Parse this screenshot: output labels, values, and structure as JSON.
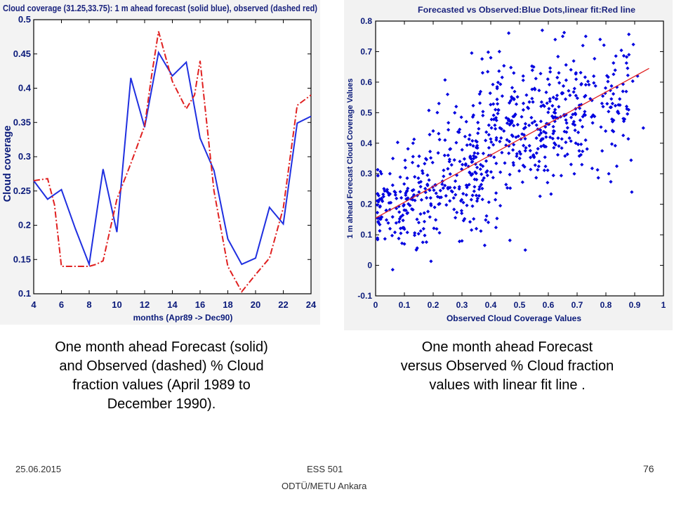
{
  "chart_data": [
    {
      "type": "line",
      "title": "Cloud coverage (31.25,33.75): 1 m ahead forecast (solid blue), observed (dashed red)",
      "xlabel": "months (Apr89 -> Dec90)",
      "ylabel": "Cloud coverage",
      "xlim": [
        4,
        24
      ],
      "ylim": [
        0.1,
        0.5
      ],
      "x_ticks": [
        "4",
        "6",
        "8",
        "10",
        "12",
        "14",
        "16",
        "18",
        "20",
        "22",
        "24"
      ],
      "y_ticks": [
        "0.1",
        "0.15",
        "0.2",
        "0.25",
        "0.3",
        "0.35",
        "0.4",
        "0.45",
        "0.5"
      ],
      "grid": false,
      "series": [
        {
          "name": "1 m ahead forecast",
          "color": "#1f2fe0",
          "style": "solid",
          "x": [
            4,
            5,
            6,
            7,
            8,
            9,
            10,
            11,
            12,
            13,
            14,
            15,
            16,
            17,
            18,
            19,
            20,
            21,
            22,
            23,
            24
          ],
          "y": [
            0.265,
            0.238,
            0.252,
            0.195,
            0.143,
            0.282,
            0.19,
            0.415,
            0.343,
            0.452,
            0.418,
            0.438,
            0.327,
            0.28,
            0.18,
            0.143,
            0.152,
            0.226,
            0.202,
            0.349,
            0.359
          ]
        },
        {
          "name": "observed",
          "color": "#e02020",
          "style": "dashed",
          "x": [
            4,
            5,
            5.5,
            6,
            7,
            8,
            8.5,
            9,
            10,
            11,
            12,
            12.5,
            13,
            14,
            15,
            15.6,
            16,
            17,
            18,
            19,
            20,
            21,
            22,
            23,
            24
          ],
          "y": [
            0.265,
            0.268,
            0.23,
            0.14,
            0.14,
            0.14,
            0.143,
            0.148,
            0.238,
            0.29,
            0.345,
            0.418,
            0.483,
            0.41,
            0.37,
            0.39,
            0.44,
            0.25,
            0.14,
            0.103,
            0.128,
            0.152,
            0.225,
            0.375,
            0.39
          ]
        }
      ]
    },
    {
      "type": "scatter",
      "title": "Forecasted vs Observed:Blue Dots,linear fit:Red line",
      "xlabel": "Observed Cloud Coverage Values",
      "ylabel": "1 m ahead Forecast Cloud Coverage Values",
      "xlim": [
        0,
        1
      ],
      "ylim": [
        -0.1,
        0.8
      ],
      "x_ticks": [
        "0",
        "0.1",
        "0.2",
        "0.3",
        "0.4",
        "0.5",
        "0.6",
        "0.7",
        "0.8",
        "0.9",
        "1"
      ],
      "y_ticks": [
        "-0.1",
        "0",
        "0.1",
        "0.2",
        "0.3",
        "0.4",
        "0.5",
        "0.6",
        "0.7",
        "0.8"
      ],
      "grid": false,
      "point_color": "#0000e0",
      "fit_color": "#e02020",
      "clusters": [
        {
          "cx": 0.07,
          "cy": 0.2,
          "sx": 0.05,
          "sy": 0.07,
          "n": 90
        },
        {
          "cx": 0.2,
          "cy": 0.26,
          "sx": 0.08,
          "sy": 0.1,
          "n": 130
        },
        {
          "cx": 0.35,
          "cy": 0.33,
          "sx": 0.07,
          "sy": 0.1,
          "n": 110
        },
        {
          "cx": 0.5,
          "cy": 0.46,
          "sx": 0.09,
          "sy": 0.1,
          "n": 220
        },
        {
          "cx": 0.7,
          "cy": 0.5,
          "sx": 0.08,
          "sy": 0.09,
          "n": 130
        },
        {
          "cx": 0.85,
          "cy": 0.56,
          "sx": 0.04,
          "sy": 0.09,
          "n": 40
        }
      ],
      "points": [
        [
          0.05,
          0.12
        ],
        [
          0.02,
          0.3
        ],
        [
          0.06,
          0.35
        ],
        [
          0.1,
          0.07
        ],
        [
          0.13,
          0.4
        ],
        [
          0.2,
          0.44
        ],
        [
          0.22,
          0.53
        ],
        [
          0.25,
          0.56
        ],
        [
          0.28,
          0.52
        ],
        [
          0.3,
          0.08
        ],
        [
          0.4,
          0.68
        ],
        [
          0.43,
          0.7
        ],
        [
          0.52,
          0.05
        ],
        [
          0.48,
          0.63
        ],
        [
          0.65,
          0.75
        ],
        [
          0.72,
          0.72
        ],
        [
          0.73,
          0.75
        ],
        [
          0.78,
          0.74
        ],
        [
          0.88,
          0.69
        ],
        [
          0.91,
          0.62
        ],
        [
          0.93,
          0.45
        ],
        [
          0.89,
          0.24
        ],
        [
          0.81,
          0.3
        ],
        [
          0.35,
          0.12
        ],
        [
          0.15,
          0.14
        ]
      ],
      "fit_line": {
        "x": [
          0,
          0.95
        ],
        "y": [
          0.155,
          0.645
        ]
      }
    }
  ],
  "captions": {
    "left": "One month ahead Forecast (solid)\nand Observed (dashed) % Cloud\nfraction values (April 1989 to\nDecember 1990).",
    "right": "One month ahead Forecast\nversus Observed % Cloud fraction\nvalues with linear fit line ."
  },
  "footer": {
    "date": "25.06.2015",
    "course": "ESS 501",
    "institution": "ODTÜ/METU Ankara",
    "page": "76"
  }
}
